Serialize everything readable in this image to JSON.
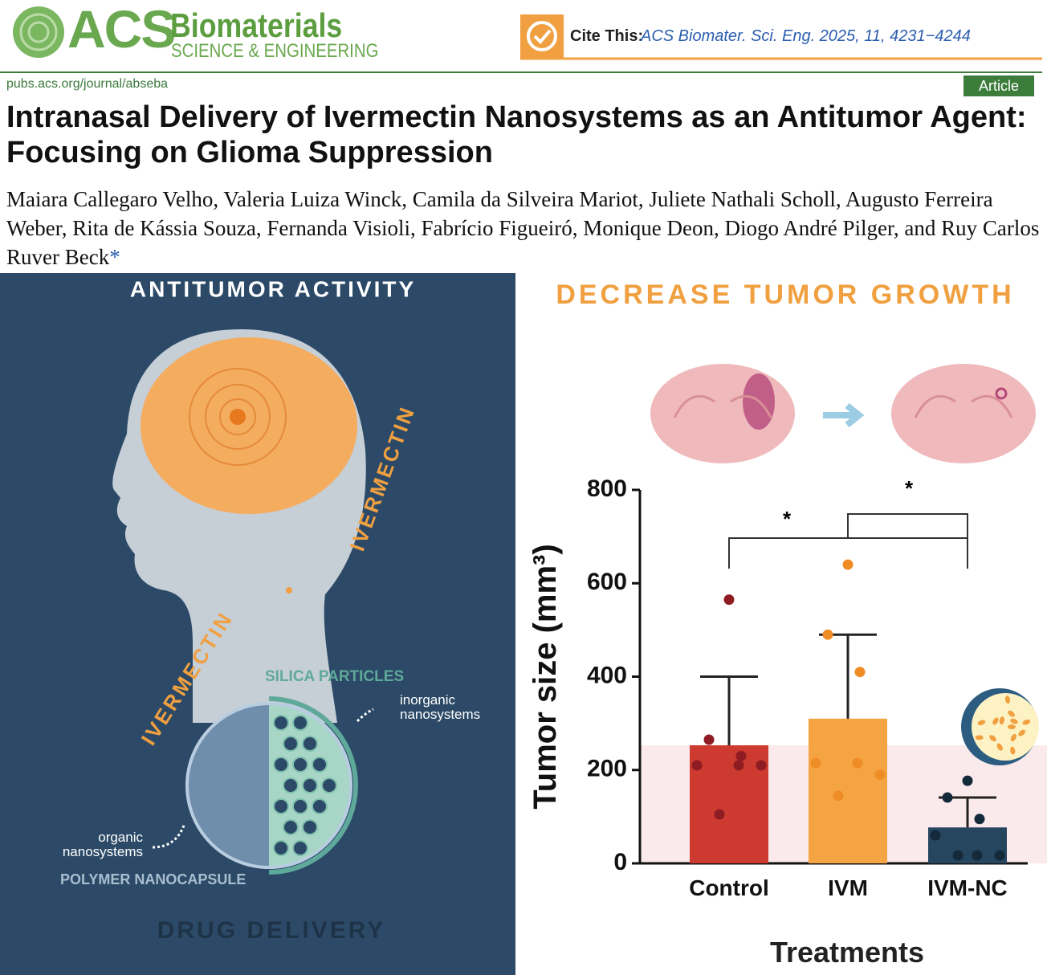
{
  "header": {
    "logo_acs": "ACS",
    "logo_journal": "Biomaterials",
    "logo_subtitle": "SCIENCE & ENGINEERING",
    "cite_label": "Cite This:",
    "cite_ref": "ACS Biomater. Sci. Eng. 2025, 11, 4231−4244",
    "url": "pubs.acs.org/journal/abseba",
    "article_type": "Article"
  },
  "title": "Intranasal Delivery of Ivermectin Nanosystems as an Antitumor Agent: Focusing on Glioma Suppression",
  "authors": "Maiara Callegaro Velho, Valeria Luiza Winck, Camila da Silveira Mariot, Juliete Nathali Scholl, Augusto Ferreira Weber, Rita de Kássia Souza, Fernanda Visioli, Fabrício Figueiró, Monique Deon, Diogo André Pilger, and Ruy Carlos Ruver Beck",
  "corresponding_mark": "*",
  "graphic": {
    "left_title": "ANTITUMOR ACTIVITY",
    "ivermectin_head": "IVERMECTIN",
    "ivermectin_neck": "IVERMECTIN",
    "silica": "SILICA PARTICLES",
    "inorganic_1": "inorganic",
    "inorganic_2": "nanosystems",
    "organic_1": "organic",
    "organic_2": "nanosystems",
    "polymer": "POLYMER NANOCAPSULE",
    "drug_delivery": "DRUG DELIVERY",
    "right_title": "DECREASE TUMOR GROWTH"
  },
  "chart_data": {
    "type": "bar",
    "categories": [
      "Control",
      "IVM",
      "IVM-NC"
    ],
    "values": [
      253,
      310,
      77
    ],
    "errors": [
      147,
      180,
      64
    ],
    "colors": [
      "#cc3a30",
      "#f5a443",
      "#264660"
    ],
    "point_colors": [
      "#8e1c22",
      "#f08c25",
      "#14293a"
    ],
    "points": [
      [
        565,
        265,
        230,
        210,
        210,
        210,
        105
      ],
      [
        640,
        490,
        410,
        215,
        215,
        190,
        145
      ],
      [
        177,
        141,
        95,
        60,
        17,
        17,
        17
      ]
    ],
    "ylabel": "Tumor size (mm³)",
    "xlabel": "Treatments",
    "ylim": [
      0,
      800
    ],
    "yticks": [
      0,
      200,
      400,
      600,
      800
    ],
    "annotations": [
      "*",
      "*"
    ]
  }
}
